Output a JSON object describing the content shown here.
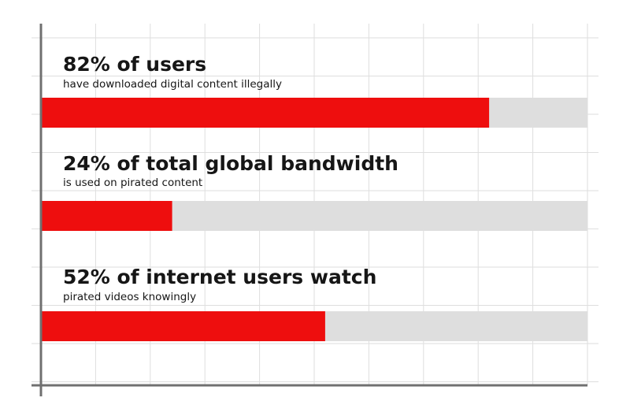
{
  "chart_data": {
    "type": "bar",
    "orientation": "horizontal",
    "xlim": [
      0,
      100
    ],
    "grid": true,
    "colors": {
      "bar_fill": "#ee0e0e",
      "track": "#dedede",
      "grid": "#dedede",
      "axis": "#707070",
      "text": "#161616"
    },
    "items": [
      {
        "value": 82,
        "headline": "82% of users",
        "subline": "have downloaded digital content illegally"
      },
      {
        "value": 24,
        "headline": "24% of total global bandwidth",
        "subline": "is used on pirated content"
      },
      {
        "value": 52,
        "headline": "52% of internet users watch",
        "subline": "pirated videos knowingly"
      }
    ]
  }
}
